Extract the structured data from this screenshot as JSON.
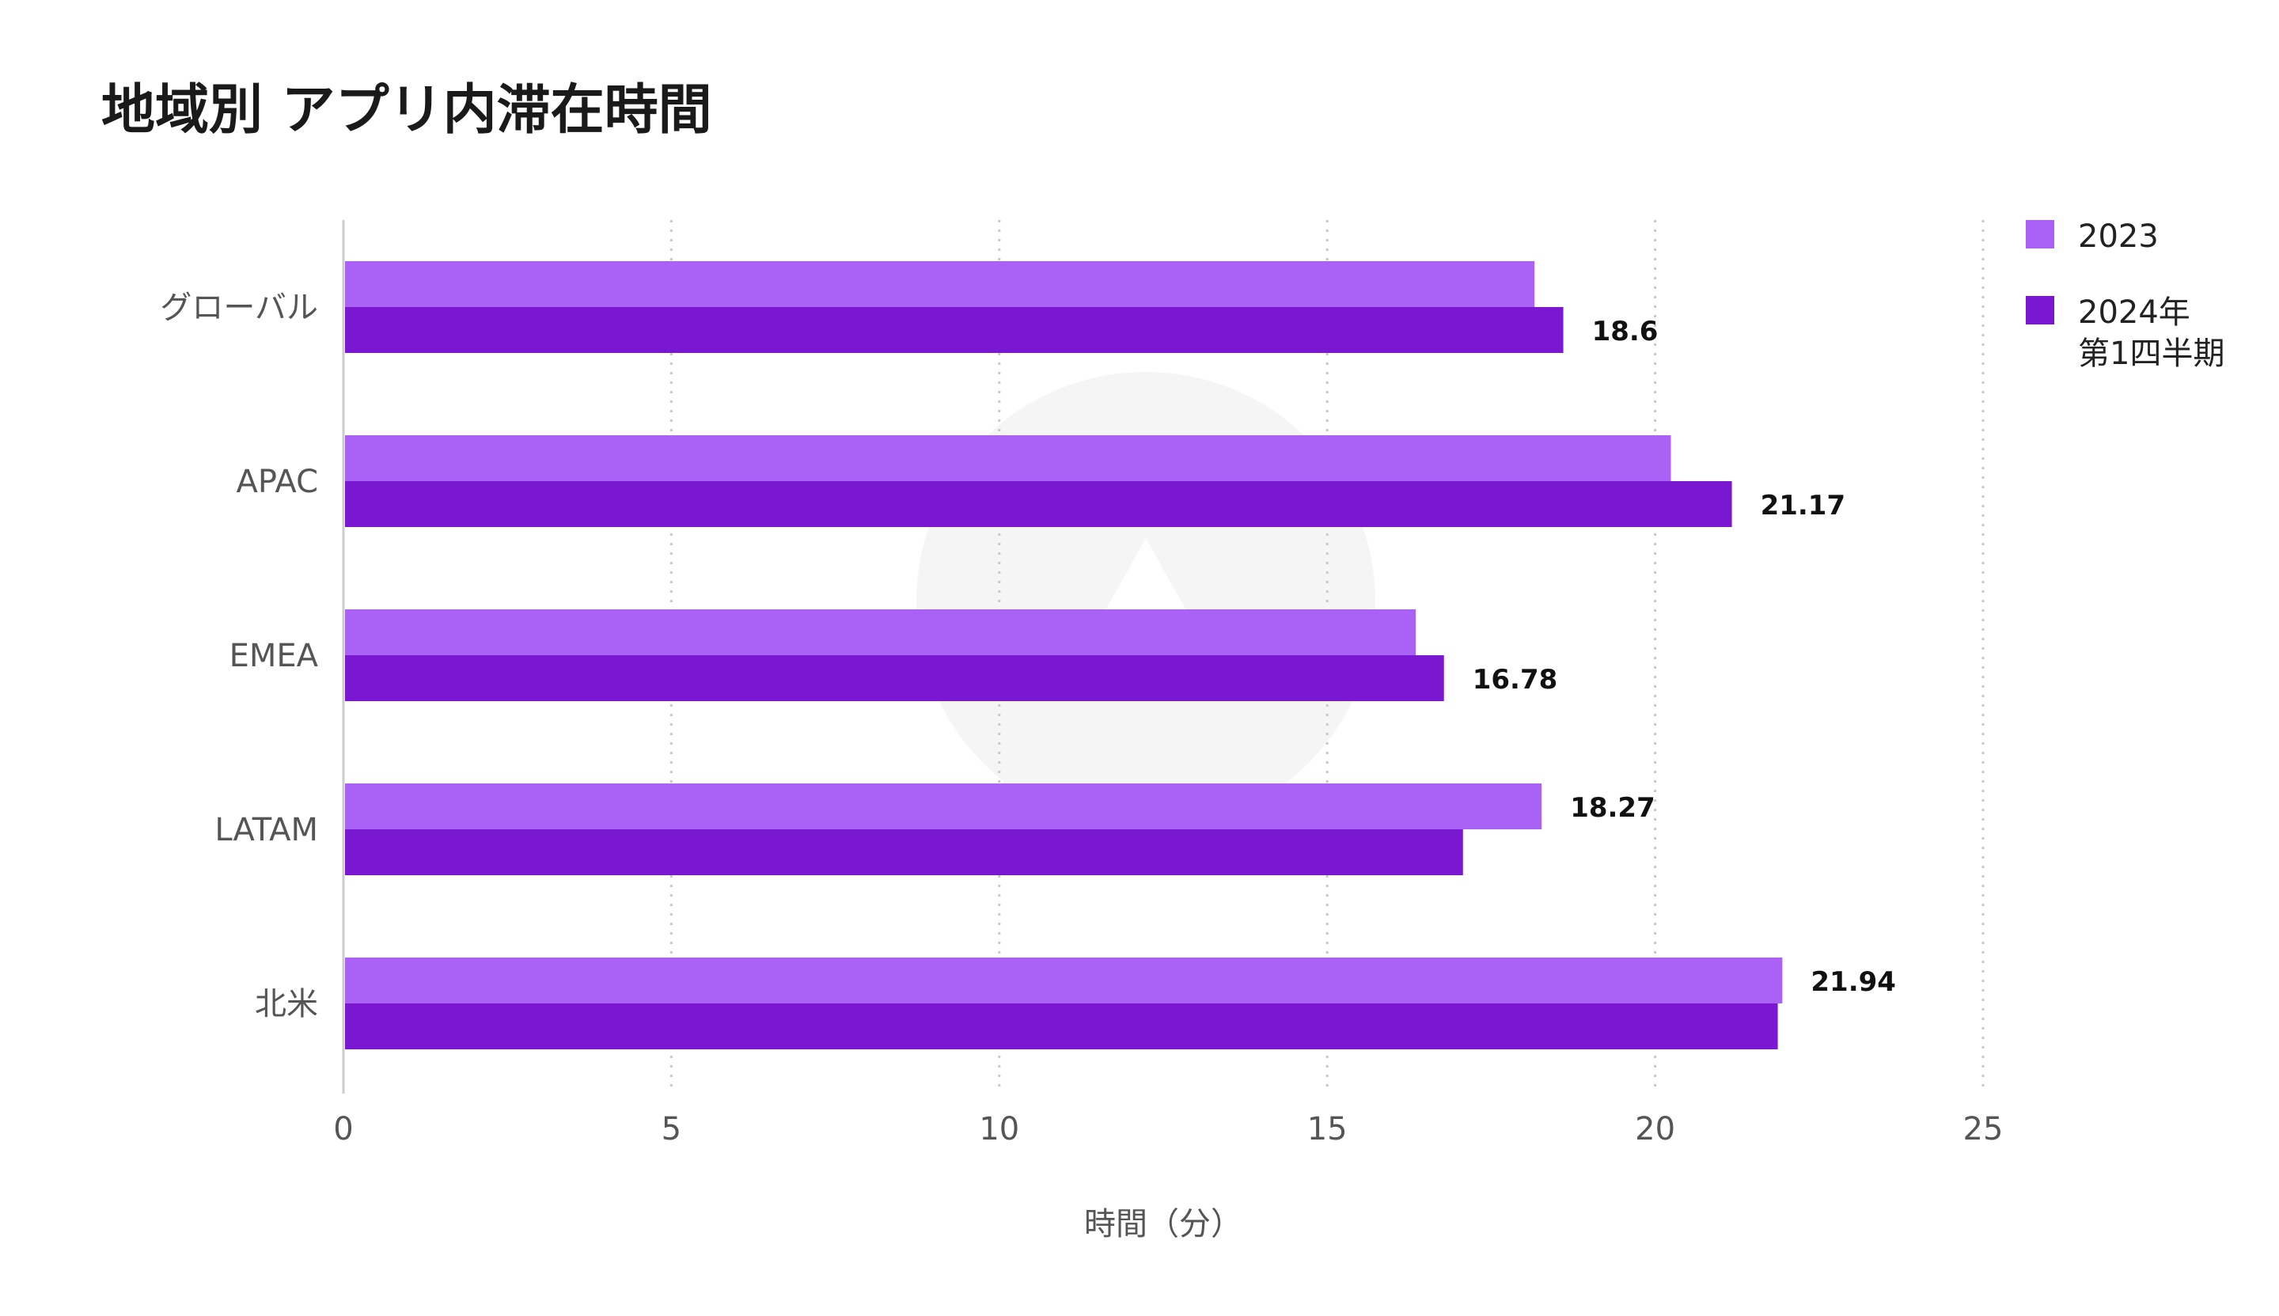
{
  "chart_data": {
    "type": "bar",
    "orientation": "horizontal",
    "title": "地域別 アプリ内滞在時間",
    "xlabel": "時間（分）",
    "ylabel": "",
    "xlim": [
      0,
      25
    ],
    "xticks": [
      0,
      5,
      10,
      15,
      20,
      25
    ],
    "grid": "vertical-dotted",
    "legend_position": "top-right",
    "categories": [
      "グローバル",
      "APAC",
      "EMEA",
      "LATAM",
      "北米"
    ],
    "series": [
      {
        "name": "2023",
        "color": "#a962f5",
        "values": [
          18.16,
          20.24,
          16.35,
          18.27,
          21.94
        ],
        "labels": [
          "",
          "",
          "",
          "18.27",
          "21.94"
        ]
      },
      {
        "name": "2024年\n第1四半期",
        "name_lines": [
          "2024年",
          "第1四半期"
        ],
        "color": "#7a17d0",
        "values": [
          18.6,
          21.17,
          16.78,
          17.07,
          21.87
        ],
        "labels": [
          "18.6",
          "21.17",
          "16.78",
          "",
          ""
        ]
      }
    ],
    "watermark_icon": "logo-watermark-icon"
  }
}
